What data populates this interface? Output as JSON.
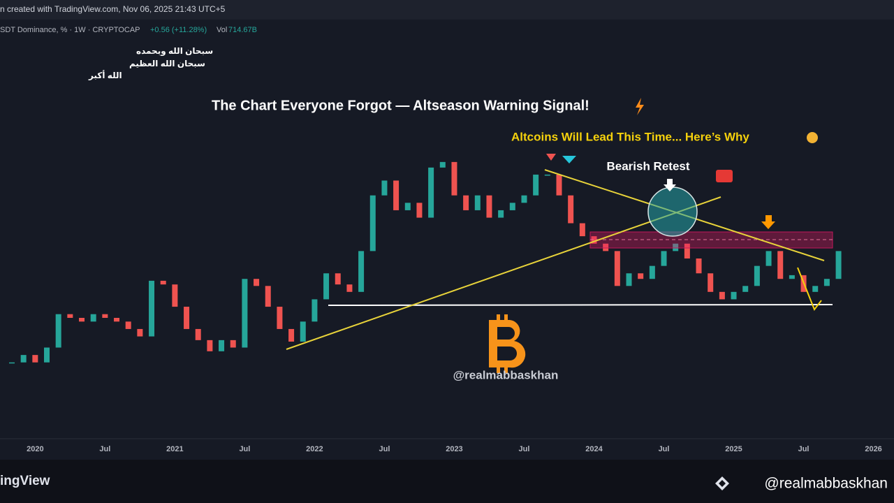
{
  "header": {
    "created": "n created with TradingView.com, Nov 06, 2025 21:43 UTC+5",
    "symbol": "SDT Dominance, % · 1W · CRYPTOCAP",
    "change": "+0.56 (+11.28%)",
    "vol_label": "Vol",
    "vol_value": "714.67B",
    "dhikr": [
      "سبحان الله وبحمده",
      "سبحان الله العظيم",
      "الله أكبر"
    ]
  },
  "footer": {
    "brand": "ingView",
    "handle": "@realmabbaskhan"
  },
  "chart_data": {
    "type": "candlestick",
    "title": "The Chart Everyone Forgot — Altseason Warning Signal!",
    "subtitle": "Altcoins Will Lead This Time... Here’s Why",
    "annotations": [
      "Bearish Retest",
      "@realmabbaskhan"
    ],
    "up_color": "#26a69a",
    "down_color": "#ef5350",
    "ylim": [
      0.5,
      11.7
    ],
    "categories": [
      null,
      null,
      "2020",
      null,
      null,
      null,
      null,
      null,
      "Jul",
      null,
      null,
      null,
      null,
      null,
      "2021",
      null,
      null,
      null,
      null,
      null,
      "Jul",
      null,
      null,
      null,
      null,
      null,
      "2022",
      null,
      null,
      null,
      null,
      null,
      "Jul",
      null,
      null,
      null,
      null,
      null,
      "2023",
      null,
      null,
      null,
      null,
      null,
      "Jul",
      null,
      null,
      null,
      null,
      null,
      "2024",
      null,
      null,
      null,
      null,
      null,
      "Jul",
      null,
      null,
      null,
      null,
      null,
      "2025",
      null,
      null,
      null,
      null,
      null,
      "Jul",
      null,
      null,
      null,
      null,
      null,
      "2026"
    ],
    "values": [
      2.5,
      2.7,
      2.5,
      2.9,
      3.8,
      3.7,
      3.6,
      3.8,
      3.7,
      3.6,
      3.4,
      3.2,
      4.7,
      4.6,
      4.0,
      3.4,
      3.1,
      2.8,
      3.1,
      2.9,
      4.75,
      4.56,
      4.0,
      3.4,
      3.06,
      3.6,
      4.2,
      4.9,
      4.6,
      4.4,
      5.5,
      7.0,
      7.4,
      6.6,
      6.8,
      6.4,
      7.75,
      7.9,
      7.0,
      6.6,
      7.0,
      6.4,
      6.6,
      6.8,
      7.0,
      7.56,
      7.56,
      7.0,
      6.25,
      5.9,
      5.7,
      5.5,
      4.56,
      4.9,
      4.75,
      5.1,
      5.5,
      5.7,
      5.3,
      4.9,
      4.4,
      4.2,
      4.4,
      4.56,
      5.1,
      5.5,
      4.75,
      4.85,
      4.4,
      4.56,
      4.75,
      5.5,
      null,
      null,
      null
    ]
  }
}
